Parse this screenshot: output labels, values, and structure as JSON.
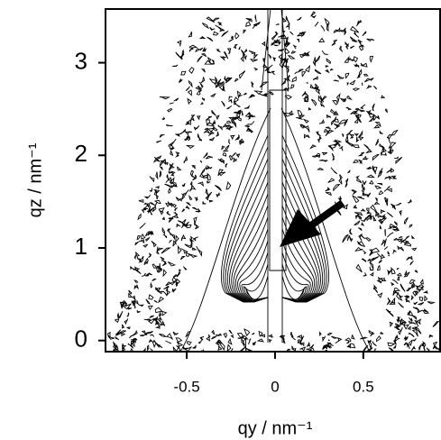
{
  "chart_data": {
    "type": "contour",
    "xlabel": "qy  /  nm⁻¹",
    "ylabel": "qz  /  nm⁻¹",
    "xlim": [
      -0.96,
      0.94
    ],
    "ylim": [
      -0.12,
      3.58
    ],
    "xticks": [
      -0.5,
      0,
      0.5
    ],
    "yticks": [
      0,
      1,
      2,
      3
    ]
  }
}
